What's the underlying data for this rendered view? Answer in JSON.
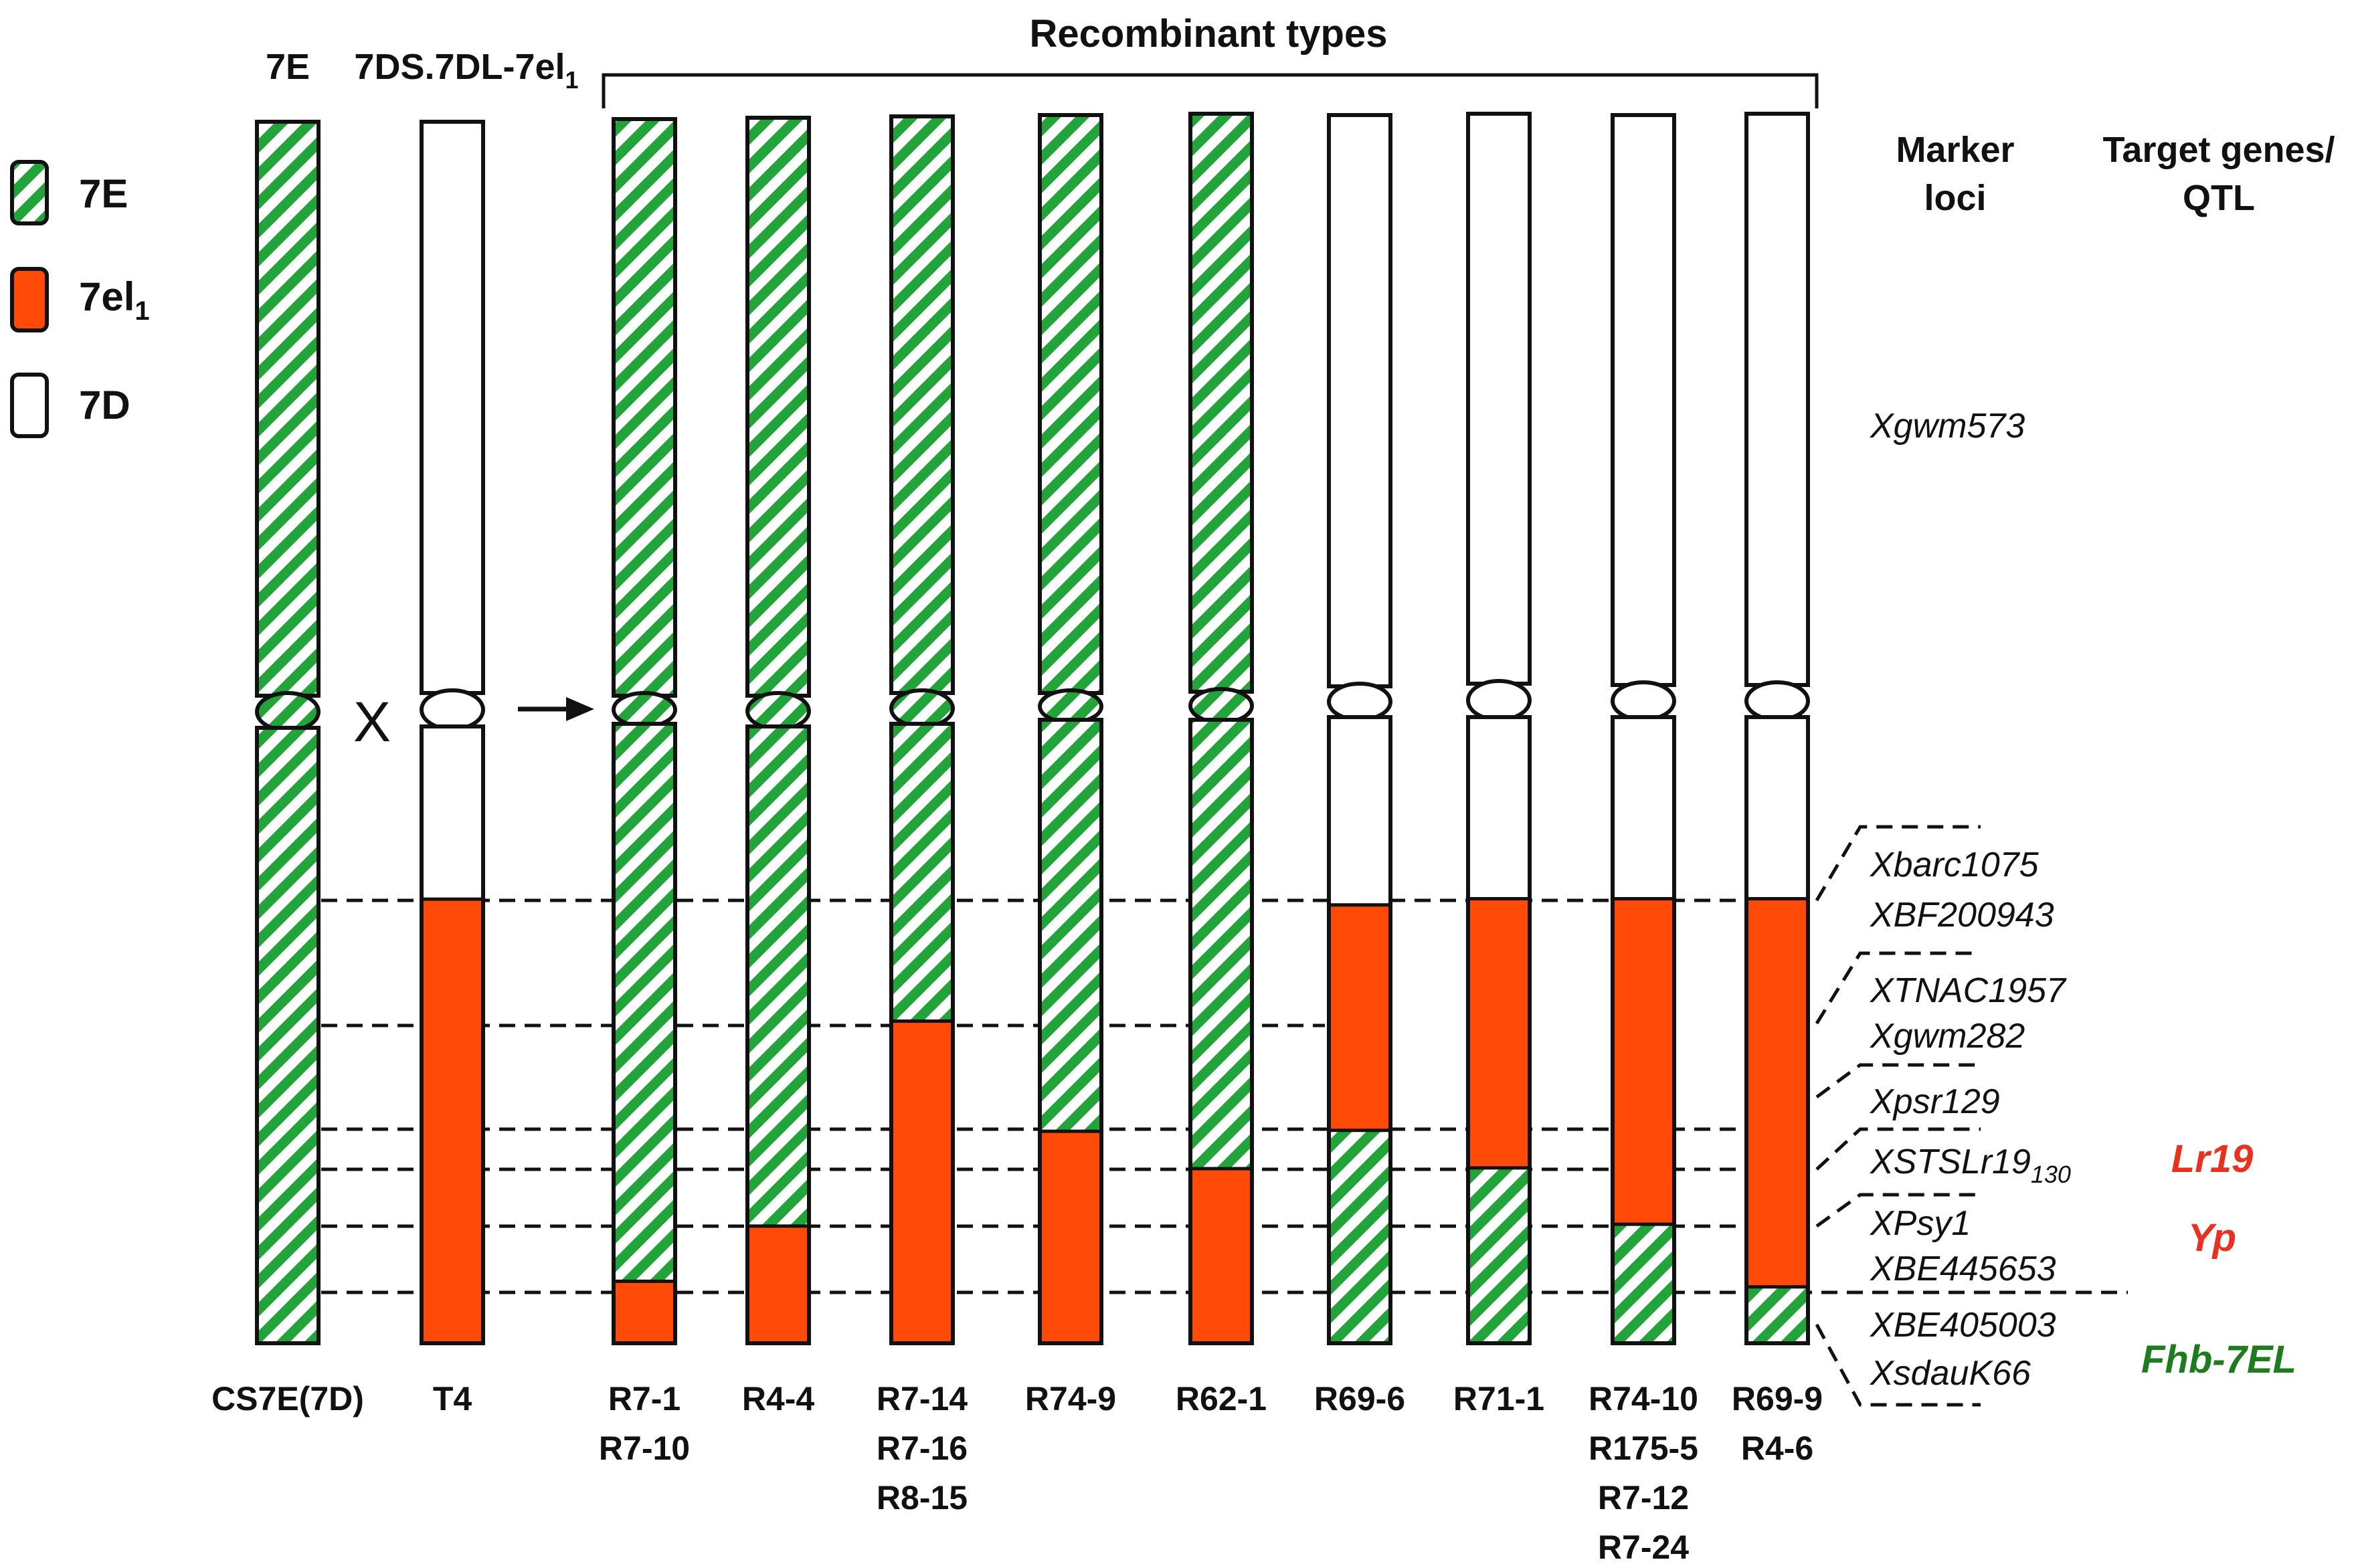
{
  "header": {
    "recombinant_title": "Recombinant types",
    "parent_7e": "7E",
    "parent_t4_main": "7DS.7DL-7el",
    "parent_t4_sub": "1",
    "cross_symbol": "X",
    "marker_header_line1": "Marker",
    "marker_header_line2": "loci",
    "target_header_line1": "Target genes/",
    "target_header_line2": "QTL"
  },
  "legend": [
    {
      "label": "7E",
      "sub": "",
      "fill": "hatch"
    },
    {
      "label": "7el",
      "sub": "1",
      "fill": "red"
    },
    {
      "label": "7D",
      "sub": "",
      "fill": "white"
    }
  ],
  "colors": {
    "green": "#22a43a",
    "red": "#ff4a08",
    "outline": "#111111",
    "lr19": "#e8321f",
    "yp": "#e8321f",
    "fhb": "#1e7c1e"
  },
  "chromosomes": [
    {
      "name": "CS7E(7D)",
      "labels": [
        "CS7E(7D)"
      ],
      "short_arm": "hatch",
      "long_arm": [
        [
          "hatch",
          0,
          100
        ]
      ]
    },
    {
      "name": "T4",
      "labels": [
        "T4"
      ],
      "short_arm": "white",
      "long_arm": [
        [
          "white",
          0,
          28
        ],
        [
          "red",
          28,
          100
        ]
      ]
    },
    {
      "name": "R7-1",
      "labels": [
        "R7-1",
        "R7-10"
      ],
      "short_arm": "hatch",
      "long_arm": [
        [
          "hatch",
          0,
          90
        ],
        [
          "red",
          90,
          100
        ]
      ]
    },
    {
      "name": "R4-4",
      "labels": [
        "R4-4"
      ],
      "short_arm": "hatch",
      "long_arm": [
        [
          "hatch",
          0,
          81
        ],
        [
          "red",
          81,
          100
        ]
      ]
    },
    {
      "name": "R7-14",
      "labels": [
        "R7-14",
        "R7-16",
        "R8-15"
      ],
      "short_arm": "hatch",
      "long_arm": [
        [
          "hatch",
          0,
          48
        ],
        [
          "red",
          48,
          100
        ]
      ]
    },
    {
      "name": "R74-9",
      "labels": [
        "R74-9"
      ],
      "short_arm": "hatch",
      "long_arm": [
        [
          "hatch",
          0,
          66
        ],
        [
          "red",
          66,
          100
        ]
      ]
    },
    {
      "name": "R62-1",
      "labels": [
        "R62-1"
      ],
      "short_arm": "hatch",
      "long_arm": [
        [
          "hatch",
          0,
          72
        ],
        [
          "red",
          72,
          100
        ]
      ]
    },
    {
      "name": "R69-6",
      "labels": [
        "R69-6"
      ],
      "short_arm": "white",
      "long_arm": [
        [
          "white",
          0,
          30
        ],
        [
          "red",
          30,
          66
        ],
        [
          "hatch",
          66,
          100
        ]
      ]
    },
    {
      "name": "R71-1",
      "labels": [
        "R71-1"
      ],
      "short_arm": "white",
      "long_arm": [
        [
          "white",
          0,
          29
        ],
        [
          "red",
          29,
          72
        ],
        [
          "hatch",
          72,
          100
        ]
      ]
    },
    {
      "name": "R74-10",
      "labels": [
        "R74-10",
        "R175-5",
        "R7-12",
        "R7-24"
      ],
      "short_arm": "white",
      "long_arm": [
        [
          "white",
          0,
          29
        ],
        [
          "red",
          29,
          81
        ],
        [
          "hatch",
          81,
          100
        ]
      ]
    },
    {
      "name": "R69-9",
      "labels": [
        "R69-9",
        "R4-6"
      ],
      "short_arm": "white",
      "long_arm": [
        [
          "white",
          0,
          29
        ],
        [
          "red",
          29,
          91
        ],
        [
          "hatch",
          91,
          100
        ]
      ]
    }
  ],
  "markers": [
    {
      "name": "Xgwm573",
      "sub": ""
    },
    {
      "name": "Xbarc1075",
      "sub": ""
    },
    {
      "name": "XBF200943",
      "sub": ""
    },
    {
      "name": "XTNAC1957",
      "sub": ""
    },
    {
      "name": "Xgwm282",
      "sub": ""
    },
    {
      "name": "Xpsr129",
      "sub": ""
    },
    {
      "name": "XSTSLr19",
      "sub": "130"
    },
    {
      "name": "XPsy1",
      "sub": ""
    },
    {
      "name": "XBE445653",
      "sub": ""
    },
    {
      "name": "XBE405003",
      "sub": ""
    },
    {
      "name": "XsdauK66",
      "sub": ""
    }
  ],
  "targets": [
    {
      "name": "Lr19"
    },
    {
      "name": "Yp"
    },
    {
      "name": "Fhb-7EL"
    }
  ]
}
